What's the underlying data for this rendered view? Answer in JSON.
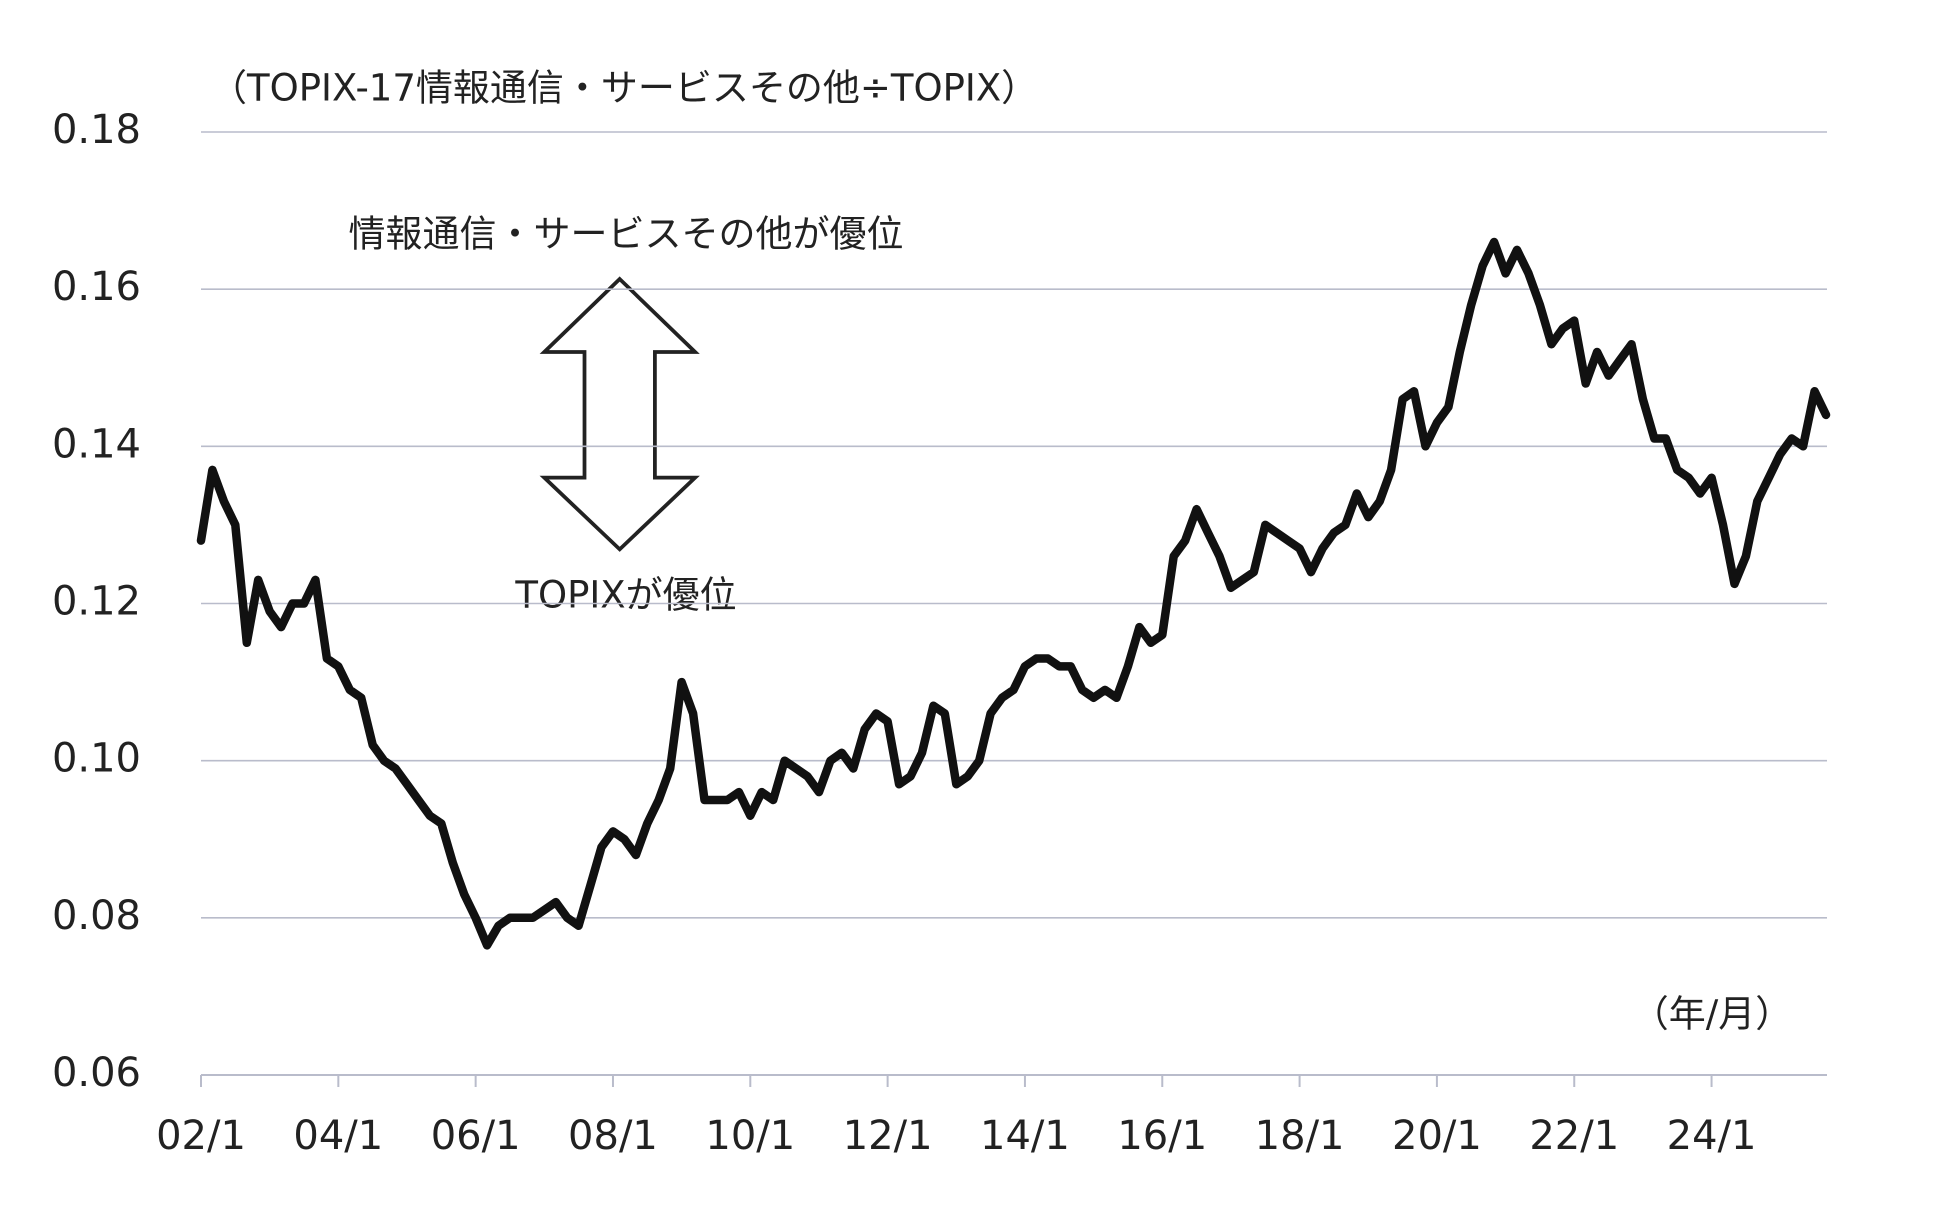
{
  "chart_data": {
    "type": "line",
    "subtitle": "（TOPIX-17情報通信・サービスその他÷TOPIX）",
    "annotations": [
      "情報通信・サービスその他が優位",
      "TOPIXが優位"
    ],
    "x_unit": "（年/月）",
    "categories": [
      "02/1",
      null,
      null,
      null,
      null,
      null,
      null,
      null,
      null,
      null,
      null,
      null,
      "04/1",
      null,
      null,
      null,
      null,
      null,
      null,
      null,
      null,
      null,
      null,
      null,
      "06/1",
      null,
      null,
      null,
      null,
      null,
      null,
      null,
      null,
      null,
      null,
      null,
      "08/1",
      null,
      null,
      null,
      null,
      null,
      null,
      null,
      null,
      null,
      null,
      null,
      "10/1",
      null,
      null,
      null,
      null,
      null,
      null,
      null,
      null,
      null,
      null,
      null,
      "12/1",
      null,
      null,
      null,
      null,
      null,
      null,
      null,
      null,
      null,
      null,
      null,
      "14/1",
      null,
      null,
      null,
      null,
      null,
      null,
      null,
      null,
      null,
      null,
      null,
      "16/1",
      null,
      null,
      null,
      null,
      null,
      null,
      null,
      null,
      null,
      null,
      null,
      "18/1",
      null,
      null,
      null,
      null,
      null,
      null,
      null,
      null,
      null,
      null,
      null,
      "20/1",
      null,
      null,
      null,
      null,
      null,
      null,
      null,
      null,
      null,
      null,
      null,
      "22/1",
      null,
      null,
      null,
      null,
      null,
      null,
      null,
      null,
      null,
      null,
      null,
      "24/1",
      null,
      null,
      null,
      null,
      null,
      null,
      null,
      null,
      null,
      null
    ],
    "values": [
      0.128,
      0.137,
      0.133,
      0.13,
      0.115,
      0.123,
      0.119,
      0.117,
      0.12,
      0.12,
      0.123,
      0.113,
      0.112,
      0.109,
      0.108,
      0.102,
      0.1,
      0.099,
      0.097,
      0.095,
      0.093,
      0.092,
      0.087,
      0.083,
      0.08,
      0.0765,
      0.079,
      0.08,
      0.08,
      0.08,
      0.081,
      0.082,
      0.08,
      0.079,
      0.084,
      0.089,
      0.091,
      0.09,
      0.088,
      0.092,
      0.095,
      0.099,
      0.11,
      0.106,
      0.095,
      0.095,
      0.095,
      0.096,
      0.093,
      0.096,
      0.095,
      0.1,
      0.099,
      0.098,
      0.096,
      0.1,
      0.101,
      0.099,
      0.104,
      0.106,
      0.105,
      0.097,
      0.098,
      0.101,
      0.107,
      0.106,
      0.097,
      0.098,
      0.1,
      0.106,
      0.108,
      0.109,
      0.112,
      0.113,
      0.113,
      0.112,
      0.112,
      0.109,
      0.108,
      0.109,
      0.108,
      0.112,
      0.117,
      0.115,
      0.116,
      0.126,
      0.128,
      0.132,
      0.129,
      0.126,
      0.122,
      0.123,
      0.124,
      0.13,
      0.129,
      0.128,
      0.127,
      0.124,
      0.127,
      0.129,
      0.13,
      0.134,
      0.131,
      0.133,
      0.137,
      0.146,
      0.147,
      0.14,
      0.143,
      0.145,
      0.152,
      0.158,
      0.163,
      0.166,
      0.162,
      0.165,
      0.162,
      0.158,
      0.153,
      0.155,
      0.156,
      0.148,
      0.152,
      0.149,
      0.151,
      0.153,
      0.146,
      0.141,
      0.141,
      0.137,
      0.136,
      0.134,
      0.136,
      0.13,
      0.1225,
      0.126,
      0.133,
      0.136,
      0.139,
      0.141,
      0.14,
      0.147,
      0.144
    ],
    "color": "#111111",
    "ylim": [
      0.06,
      0.18
    ],
    "yticks": [
      {
        "value": 0.06,
        "label": "0.06"
      },
      {
        "value": 0.08,
        "label": "0.08"
      },
      {
        "value": 0.1,
        "label": "0.10"
      },
      {
        "value": 0.12,
        "label": "0.12"
      },
      {
        "value": 0.14,
        "label": "0.14"
      },
      {
        "value": 0.16,
        "label": "0.16"
      },
      {
        "value": 0.18,
        "label": "0.18"
      }
    ],
    "grid": true
  }
}
